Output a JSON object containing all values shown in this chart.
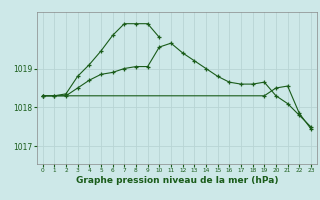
{
  "bg_color": "#cde8e8",
  "grid_color": "#b8d4d4",
  "line_color": "#1a5c1a",
  "marker_color": "#1a5c1a",
  "xlabel": "Graphe pression niveau de la mer (hPa)",
  "xlabel_fontsize": 6.5,
  "yticks": [
    1017,
    1018,
    1019
  ],
  "xticks": [
    0,
    1,
    2,
    3,
    4,
    5,
    6,
    7,
    8,
    9,
    10,
    11,
    12,
    13,
    14,
    15,
    16,
    17,
    18,
    19,
    20,
    21,
    22,
    23
  ],
  "ylim": [
    1016.55,
    1020.45
  ],
  "xlim": [
    -0.5,
    23.5
  ],
  "series": [
    [
      1018.3,
      1018.3,
      1018.3,
      1018.5,
      1018.7,
      1018.85,
      1018.9,
      1019.0,
      1019.05,
      1019.05,
      1019.55,
      1019.65,
      1019.4,
      1019.2,
      1019.0,
      1018.8,
      1018.65,
      1018.6,
      1018.6,
      1018.65,
      1018.3,
      1018.1,
      1017.8,
      1017.5
    ],
    [
      1018.3,
      1018.3,
      1018.35,
      1018.8,
      1019.1,
      1019.45,
      1019.85,
      1020.15,
      1020.15,
      1020.15,
      1019.8,
      null,
      null,
      null,
      null,
      null,
      null,
      null,
      null,
      null,
      null,
      null,
      null,
      null
    ],
    [
      1018.3,
      null,
      null,
      null,
      null,
      null,
      null,
      null,
      null,
      null,
      null,
      null,
      null,
      null,
      null,
      null,
      null,
      null,
      null,
      1018.3,
      1018.5,
      1018.55,
      1017.85,
      1017.45
    ]
  ]
}
